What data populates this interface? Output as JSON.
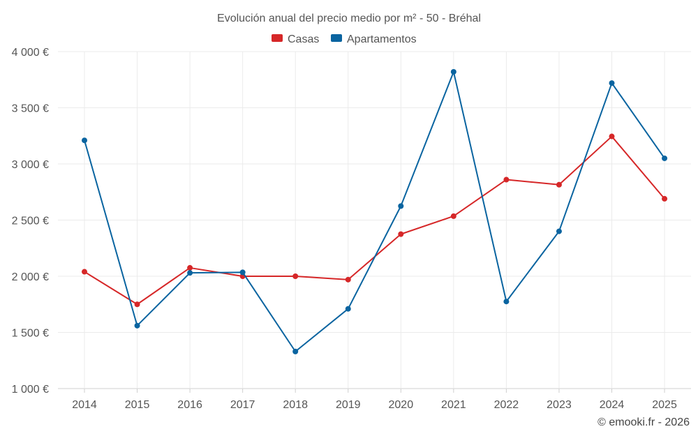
{
  "chart_data": {
    "type": "line",
    "title": "Evolución anual del precio medio por m² - 50 - Bréhal",
    "categories": [
      "2014",
      "2015",
      "2016",
      "2017",
      "2018",
      "2019",
      "2020",
      "2021",
      "2022",
      "2023",
      "2024",
      "2025"
    ],
    "series": [
      {
        "name": "Casas",
        "color": "#d62728",
        "values": [
          2040,
          1750,
          2075,
          2000,
          2000,
          1970,
          2375,
          2535,
          2860,
          2815,
          3245,
          2690
        ]
      },
      {
        "name": "Apartamentos",
        "color": "#0a64a0",
        "values": [
          3210,
          1560,
          2030,
          2035,
          1330,
          1710,
          2625,
          3820,
          1775,
          2400,
          3720,
          3050
        ]
      }
    ],
    "y_ticks": [
      {
        "value": 1000,
        "label": "1 000 €"
      },
      {
        "value": 1500,
        "label": "1 500 €"
      },
      {
        "value": 2000,
        "label": "2 000 €"
      },
      {
        "value": 2500,
        "label": "2 500 €"
      },
      {
        "value": 3000,
        "label": "3 000 €"
      },
      {
        "value": 3500,
        "label": "3 500 €"
      },
      {
        "value": 4000,
        "label": "4 000 €"
      }
    ],
    "ylim": [
      1000,
      4000
    ],
    "grid": true,
    "legend_position": "top-center",
    "credit": "© emooki.fr - 2026"
  }
}
